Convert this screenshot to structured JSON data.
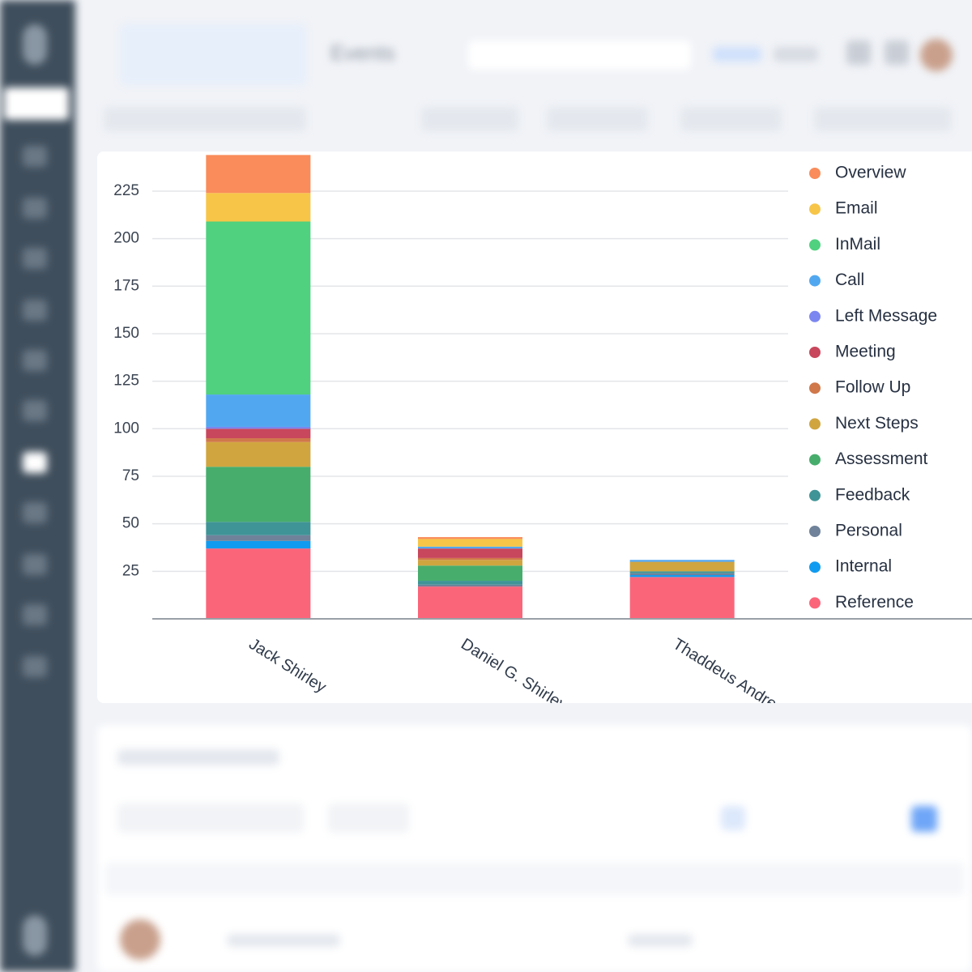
{
  "header": {
    "title": "Events"
  },
  "chart_data": {
    "type": "stacked-bar",
    "categories": [
      "Jack Shirley",
      "Daniel G. Shirley",
      "Thaddeus Andres"
    ],
    "ylim": [
      0,
      245
    ],
    "yticks": [
      25,
      50,
      75,
      100,
      125,
      150,
      175,
      200,
      225
    ],
    "grid": true,
    "legend": "right",
    "series": [
      {
        "name": "Overview",
        "color": "#f98c5a",
        "values": [
          20,
          1,
          0
        ]
      },
      {
        "name": "Email",
        "color": "#f7c548",
        "values": [
          15,
          4,
          0
        ]
      },
      {
        "name": "InMail",
        "color": "#4fd17f",
        "values": [
          91,
          0,
          0
        ]
      },
      {
        "name": "Call",
        "color": "#52a8f0",
        "values": [
          17,
          1,
          1
        ]
      },
      {
        "name": "Left Message",
        "color": "#7b86f0",
        "values": [
          1,
          0,
          0
        ]
      },
      {
        "name": "Meeting",
        "color": "#c8475c",
        "values": [
          5,
          5,
          0
        ]
      },
      {
        "name": "Follow Up",
        "color": "#d0784a",
        "values": [
          2,
          1,
          0
        ]
      },
      {
        "name": "Next Steps",
        "color": "#d0a540",
        "values": [
          13,
          3,
          5
        ]
      },
      {
        "name": "Assessment",
        "color": "#47ad6c",
        "values": [
          29,
          8,
          0
        ]
      },
      {
        "name": "Feedback",
        "color": "#3f9497",
        "values": [
          7,
          2,
          1
        ]
      },
      {
        "name": "Personal",
        "color": "#6f829a",
        "values": [
          3,
          1,
          1
        ]
      },
      {
        "name": "Internal",
        "color": "#119bf0",
        "values": [
          4,
          0,
          1
        ]
      },
      {
        "name": "Reference",
        "color": "#fb657a",
        "values": [
          37,
          17,
          22
        ]
      }
    ]
  }
}
